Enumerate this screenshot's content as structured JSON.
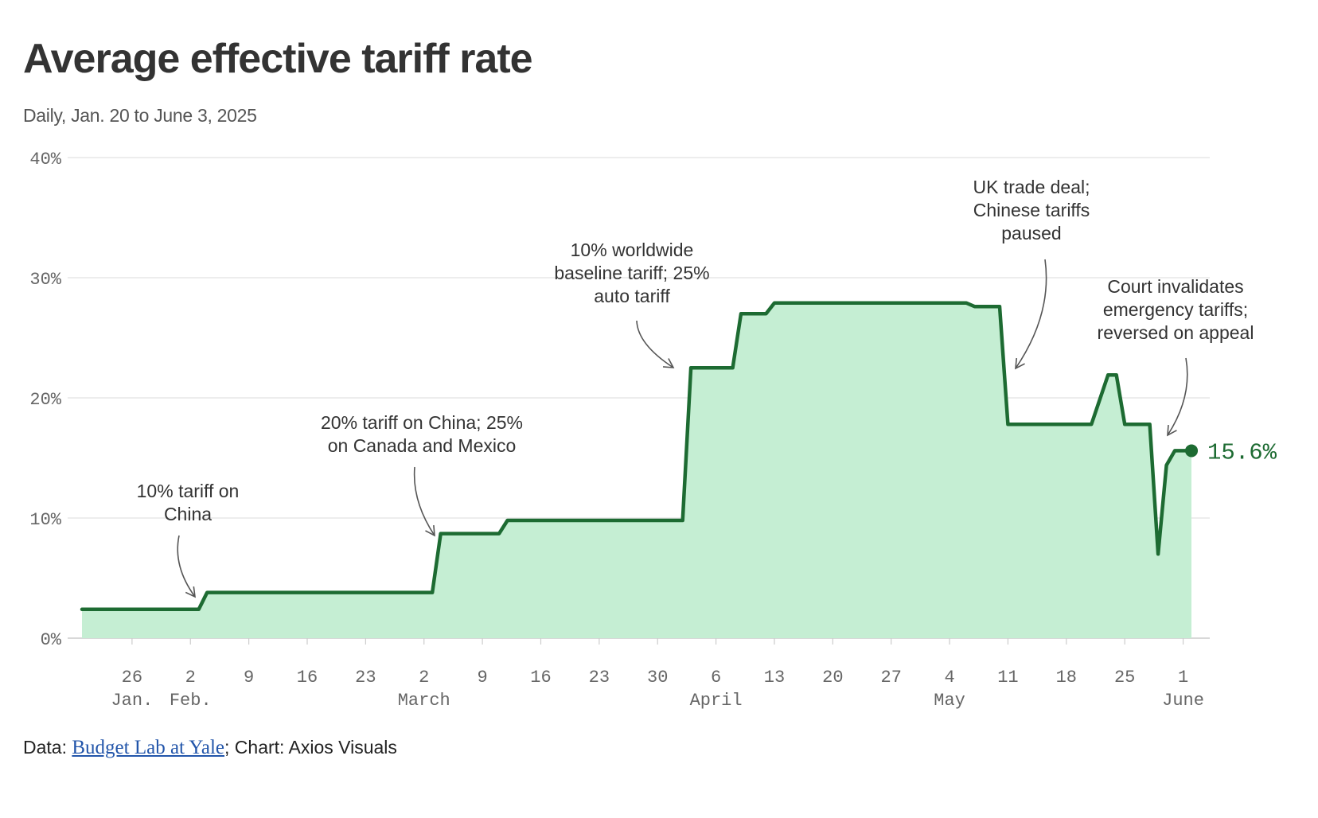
{
  "chart_data": {
    "type": "area",
    "title": "Average effective tariff rate",
    "subtitle": "Daily, Jan. 20 to June 3, 2025",
    "xlabel": "",
    "ylabel": "",
    "ylim": [
      0,
      40
    ],
    "y_ticks": [
      0,
      10,
      20,
      30,
      40
    ],
    "y_tick_labels": [
      "0%",
      "10%",
      "20%",
      "30%",
      "40%"
    ],
    "x_range": [
      "2025-01-20",
      "2025-06-04"
    ],
    "x_ticks": [
      {
        "date": "2025-01-26",
        "label": "26"
      },
      {
        "date": "2025-02-02",
        "label": "2"
      },
      {
        "date": "2025-02-09",
        "label": "9"
      },
      {
        "date": "2025-02-16",
        "label": "16"
      },
      {
        "date": "2025-02-23",
        "label": "23"
      },
      {
        "date": "2025-03-02",
        "label": "2"
      },
      {
        "date": "2025-03-09",
        "label": "9"
      },
      {
        "date": "2025-03-16",
        "label": "16"
      },
      {
        "date": "2025-03-23",
        "label": "23"
      },
      {
        "date": "2025-03-30",
        "label": "30"
      },
      {
        "date": "2025-04-06",
        "label": "6"
      },
      {
        "date": "2025-04-13",
        "label": "13"
      },
      {
        "date": "2025-04-20",
        "label": "20"
      },
      {
        "date": "2025-04-27",
        "label": "27"
      },
      {
        "date": "2025-05-04",
        "label": "4"
      },
      {
        "date": "2025-05-11",
        "label": "11"
      },
      {
        "date": "2025-05-18",
        "label": "18"
      },
      {
        "date": "2025-05-25",
        "label": "25"
      },
      {
        "date": "2025-06-01",
        "label": "1"
      }
    ],
    "month_labels": [
      {
        "date": "2025-01-26",
        "label": "Jan."
      },
      {
        "date": "2025-02-02",
        "label": "Feb."
      },
      {
        "date": "2025-03-02",
        "label": "March"
      },
      {
        "date": "2025-04-06",
        "label": "April"
      },
      {
        "date": "2025-05-04",
        "label": "May"
      },
      {
        "date": "2025-06-01",
        "label": "June"
      }
    ],
    "series": [
      {
        "color": "#1d6b32",
        "fill": "#c5eed3",
        "points": [
          [
            "2025-01-20",
            2.4
          ],
          [
            "2025-02-03",
            2.4
          ],
          [
            "2025-02-04",
            3.8
          ],
          [
            "2025-03-03",
            3.8
          ],
          [
            "2025-03-04",
            8.7
          ],
          [
            "2025-03-11",
            8.7
          ],
          [
            "2025-03-12",
            9.8
          ],
          [
            "2025-04-02",
            9.8
          ],
          [
            "2025-04-03",
            22.5
          ],
          [
            "2025-04-08",
            22.5
          ],
          [
            "2025-04-09",
            27.0
          ],
          [
            "2025-04-12",
            27.0
          ],
          [
            "2025-04-13",
            27.9
          ],
          [
            "2025-05-06",
            27.9
          ],
          [
            "2025-05-07",
            27.6
          ],
          [
            "2025-05-10",
            27.6
          ],
          [
            "2025-05-11",
            17.8
          ],
          [
            "2025-05-21",
            17.8
          ],
          [
            "2025-05-23",
            21.9
          ],
          [
            "2025-05-24",
            21.9
          ],
          [
            "2025-05-25",
            17.8
          ],
          [
            "2025-05-28",
            17.8
          ],
          [
            "2025-05-29",
            7.0
          ],
          [
            "2025-05-30",
            14.4
          ],
          [
            "2025-05-31",
            15.6
          ],
          [
            "2025-06-02",
            15.6
          ]
        ]
      }
    ],
    "end_value": 15.6,
    "end_label": "15.6%",
    "annotations": [
      {
        "lines": [
          "10% tariff on",
          "China"
        ],
        "date": "2025-02-04",
        "value": 3.8
      },
      {
        "lines": [
          "20% tariff on China; 25%",
          "on Canada and Mexico"
        ],
        "date": "2025-03-04",
        "value": 8.7
      },
      {
        "lines": [
          "10% worldwide",
          "baseline tariff; 25%",
          "auto tariff"
        ],
        "date": "2025-04-03",
        "value": 22.5
      },
      {
        "lines": [
          "UK trade deal;",
          "Chinese tariffs",
          "paused"
        ],
        "date": "2025-05-11",
        "value": 22.5
      },
      {
        "lines": [
          "Court invalidates",
          "emergency tariffs;",
          "reversed on appeal"
        ],
        "date": "2025-05-30",
        "value": 17.0
      }
    ],
    "grid": true,
    "legend": "none"
  },
  "source": {
    "prefix": "Data: ",
    "link_text": "Budget Lab at Yale",
    "suffix": "; Chart: Axios Visuals"
  }
}
